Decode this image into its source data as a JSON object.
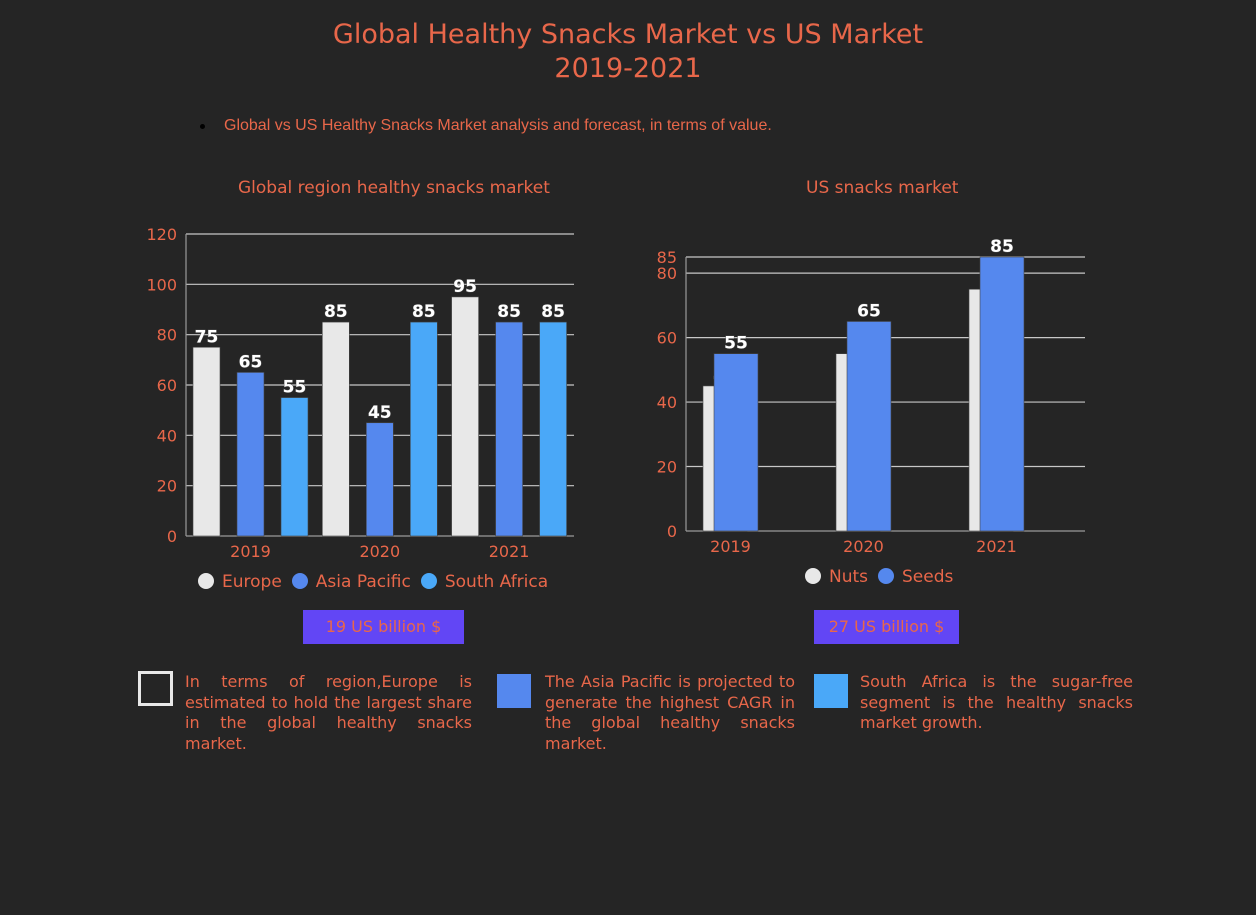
{
  "header": {
    "title_line1": "Global Healthy Snacks Market vs US Market",
    "title_line2": "2019-2021",
    "bullet": "Global vs US Healthy Snacks Market analysis and forecast, in terms of value."
  },
  "colors": {
    "background": "#252525",
    "text": "#e8674a",
    "europe": "#e8e8e8",
    "asia_pacific": "#5588ee",
    "south_africa": "#4aa8f8",
    "badge": "#6246f5"
  },
  "chart_data": [
    {
      "type": "bar",
      "title": "Global region healthy snacks market",
      "categories": [
        "2019",
        "2020",
        "2021"
      ],
      "series": [
        {
          "name": "Europe",
          "values": [
            75,
            85,
            95
          ],
          "color": "#e8e8e8"
        },
        {
          "name": "Asia Pacific",
          "values": [
            65,
            45,
            85
          ],
          "color": "#5588ee"
        },
        {
          "name": "South Africa",
          "values": [
            55,
            85,
            85
          ],
          "color": "#4aa8f8"
        }
      ],
      "yticks": [
        0,
        20,
        40,
        60,
        80,
        100,
        120
      ],
      "ylim": [
        0,
        120
      ],
      "grid": true,
      "legend": "bottom",
      "total_label": "19 US billion $"
    },
    {
      "type": "bar",
      "title": "US snacks market",
      "categories": [
        "2019",
        "2020",
        "2021"
      ],
      "series": [
        {
          "name": "Nuts",
          "values": [
            45,
            55,
            75
          ],
          "color": "#e8e8e8"
        },
        {
          "name": "Seeds",
          "values": [
            55,
            65,
            85
          ],
          "color": "#5588ee"
        }
      ],
      "yticks": [
        0,
        20,
        40,
        60,
        80,
        85
      ],
      "ylim": [
        0,
        85
      ],
      "grid": true,
      "legend": "bottom",
      "total_label": "27 US billion $"
    }
  ],
  "notes": [
    {
      "text": "In terms of region,Europe is estimated to hold the largest share in the global healthy snacks market.",
      "swatch": "outline"
    },
    {
      "text": "The Asia Pacific is projected to generate the highest CAGR in the global healthy snacks market.",
      "swatch": "#5588ee"
    },
    {
      "text": "South Africa is the sugar-free segment is the healthy snacks market growth.",
      "swatch": "#4aa8f8"
    }
  ]
}
